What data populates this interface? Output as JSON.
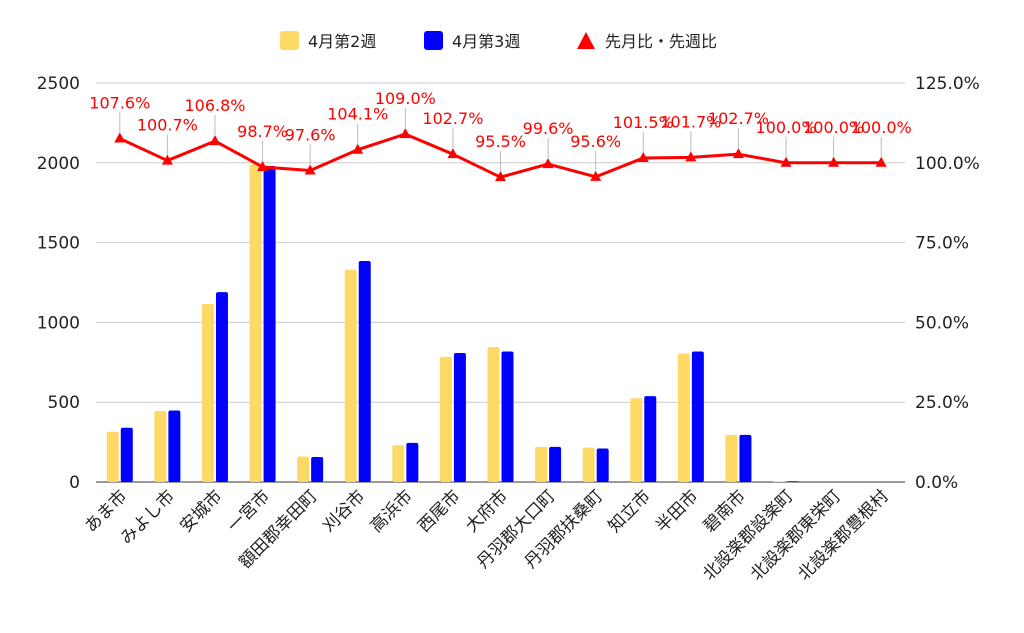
{
  "chart_data": {
    "type": "bar",
    "categories": [
      "あま市",
      "みよし市",
      "安城市",
      "一宮市",
      "額田郡幸田町",
      "刈谷市",
      "高浜市",
      "西尾市",
      "大府市",
      "丹羽郡大口町",
      "丹羽郡扶桑町",
      "知立市",
      "半田市",
      "碧南市",
      "北設楽郡設楽町",
      "北設楽郡東栄町",
      "北設楽郡豊根村"
    ],
    "series": [
      {
        "name": "4月第2週",
        "type": "bar",
        "axis": "left",
        "color": "#FFD966",
        "values": [
          315,
          445,
          1115,
          1990,
          160,
          1330,
          230,
          785,
          845,
          220,
          215,
          525,
          805,
          295,
          5,
          0,
          0
        ]
      },
      {
        "name": "4月第3週",
        "type": "bar",
        "axis": "left",
        "color": "#0000FF",
        "values": [
          340,
          448,
          1190,
          1980,
          157,
          1385,
          245,
          808,
          818,
          220,
          210,
          538,
          818,
          295,
          5,
          0,
          0
        ]
      },
      {
        "name": "先月比・先週比",
        "type": "line",
        "axis": "right",
        "color": "#FF0000",
        "values": [
          107.6,
          100.7,
          106.8,
          98.7,
          97.6,
          104.1,
          109.0,
          102.7,
          95.5,
          99.6,
          95.6,
          101.5,
          101.7,
          102.7,
          100.0,
          100.0,
          100.0
        ],
        "labels": [
          "107.6%",
          "100.7%",
          "106.8%",
          "98.7%",
          "97.6%",
          "104.1%",
          "109.0%",
          "102.7%",
          "95.5%",
          "99.6%",
          "95.6%",
          "101.5%",
          "101.7%",
          "102.7%",
          "100.0%",
          "100.0%",
          "100.0%"
        ]
      }
    ],
    "y_left": {
      "min": 0,
      "max": 2500,
      "ticks": [
        "0",
        "500",
        "1000",
        "1500",
        "2000",
        "2500"
      ]
    },
    "y_right": {
      "min": 0,
      "max": 125,
      "ticks": [
        "0.0%",
        "25.0%",
        "50.0%",
        "75.0%",
        "100.0%",
        "125.0%"
      ]
    },
    "grid": true,
    "legend_position": "top"
  }
}
